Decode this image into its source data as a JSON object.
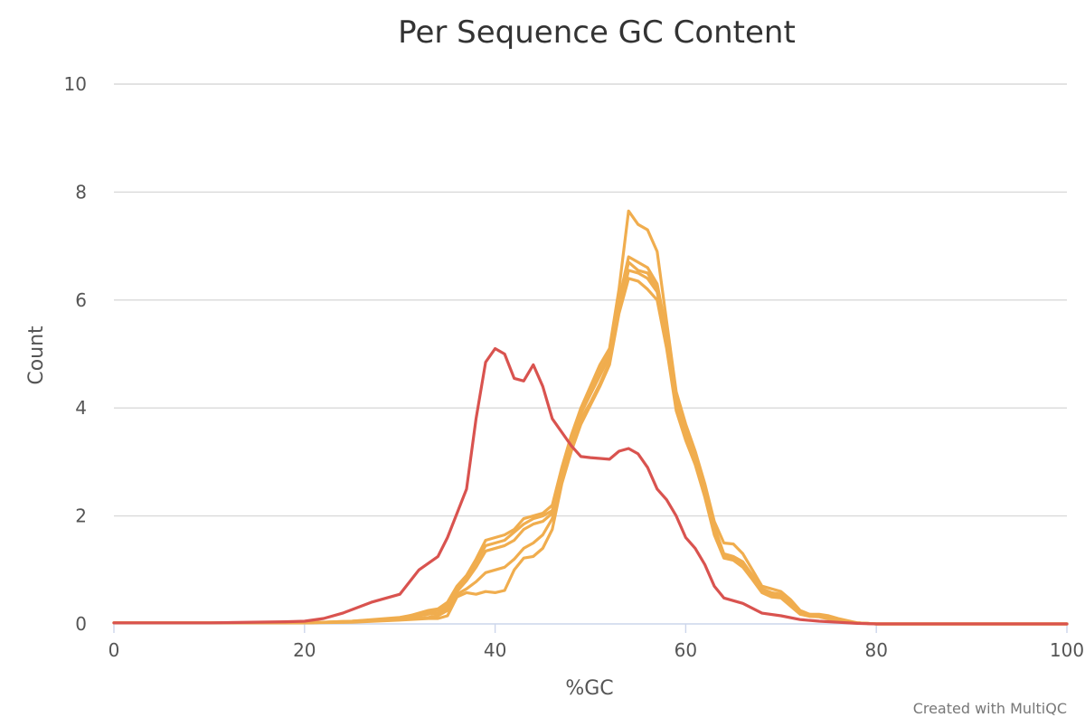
{
  "chart_data": {
    "type": "line",
    "title": "Per Sequence GC Content",
    "xlabel": "%GC",
    "ylabel": "Count",
    "xlim": [
      0,
      100
    ],
    "ylim": [
      0,
      10
    ],
    "x_ticks": [
      0,
      20,
      40,
      60,
      80,
      100
    ],
    "y_ticks": [
      0,
      2,
      4,
      6,
      8,
      10
    ],
    "grid": true,
    "legend": "none",
    "credit": "Created with MultiQC",
    "colors": {
      "fail": "#d9534f",
      "warn": "#f0ad4e"
    },
    "series": [
      {
        "status": "fail",
        "points": [
          [
            0,
            0.02
          ],
          [
            10,
            0.02
          ],
          [
            18,
            0.04
          ],
          [
            20,
            0.05
          ],
          [
            22,
            0.1
          ],
          [
            24,
            0.2
          ],
          [
            27,
            0.4
          ],
          [
            30,
            0.55
          ],
          [
            32,
            1.0
          ],
          [
            34,
            1.25
          ],
          [
            35,
            1.6
          ],
          [
            37,
            2.5
          ],
          [
            38,
            3.8
          ],
          [
            39,
            4.85
          ],
          [
            40,
            5.1
          ],
          [
            41,
            5.0
          ],
          [
            42,
            4.55
          ],
          [
            43,
            4.5
          ],
          [
            44,
            4.8
          ],
          [
            45,
            4.4
          ],
          [
            46,
            3.8
          ],
          [
            48,
            3.3
          ],
          [
            49,
            3.1
          ],
          [
            50,
            3.08
          ],
          [
            52,
            3.05
          ],
          [
            53,
            3.2
          ],
          [
            54,
            3.25
          ],
          [
            55,
            3.15
          ],
          [
            56,
            2.9
          ],
          [
            57,
            2.5
          ],
          [
            58,
            2.3
          ],
          [
            59,
            2.0
          ],
          [
            60,
            1.6
          ],
          [
            61,
            1.4
          ],
          [
            62,
            1.1
          ],
          [
            63,
            0.7
          ],
          [
            64,
            0.48
          ],
          [
            66,
            0.38
          ],
          [
            68,
            0.2
          ],
          [
            70,
            0.15
          ],
          [
            72,
            0.08
          ],
          [
            74,
            0.05
          ],
          [
            76,
            0.03
          ],
          [
            78,
            0.01
          ],
          [
            80,
            0
          ],
          [
            100,
            0
          ]
        ]
      },
      {
        "status": "warn",
        "points": [
          [
            0,
            0.02
          ],
          [
            20,
            0.02
          ],
          [
            25,
            0.05
          ],
          [
            30,
            0.1
          ],
          [
            33,
            0.25
          ],
          [
            34,
            0.28
          ],
          [
            35,
            0.4
          ],
          [
            36,
            0.7
          ],
          [
            37,
            0.9
          ],
          [
            38,
            1.2
          ],
          [
            39,
            1.55
          ],
          [
            40,
            1.6
          ],
          [
            41,
            1.65
          ],
          [
            42,
            1.75
          ],
          [
            43,
            1.95
          ],
          [
            44,
            2.0
          ],
          [
            45,
            2.05
          ],
          [
            46,
            2.2
          ],
          [
            47,
            2.9
          ],
          [
            48,
            3.5
          ],
          [
            49,
            4.0
          ],
          [
            50,
            4.4
          ],
          [
            51,
            4.8
          ],
          [
            52,
            5.1
          ],
          [
            53,
            6.2
          ],
          [
            54,
            7.65
          ],
          [
            55,
            7.4
          ],
          [
            56,
            7.3
          ],
          [
            57,
            6.9
          ],
          [
            58,
            5.6
          ],
          [
            59,
            4.3
          ],
          [
            60,
            3.7
          ],
          [
            61,
            3.2
          ],
          [
            62,
            2.6
          ],
          [
            63,
            1.9
          ],
          [
            64,
            1.5
          ],
          [
            65,
            1.48
          ],
          [
            66,
            1.3
          ],
          [
            67,
            1.0
          ],
          [
            68,
            0.7
          ],
          [
            69,
            0.65
          ],
          [
            70,
            0.6
          ],
          [
            71,
            0.45
          ],
          [
            72,
            0.25
          ],
          [
            73,
            0.18
          ],
          [
            74,
            0.18
          ],
          [
            75,
            0.15
          ],
          [
            76,
            0.1
          ],
          [
            78,
            0.02
          ],
          [
            80,
            0
          ],
          [
            100,
            0
          ]
        ]
      },
      {
        "status": "warn",
        "points": [
          [
            0,
            0.02
          ],
          [
            20,
            0.02
          ],
          [
            25,
            0.05
          ],
          [
            30,
            0.12
          ],
          [
            33,
            0.22
          ],
          [
            34,
            0.25
          ],
          [
            35,
            0.35
          ],
          [
            36,
            0.65
          ],
          [
            37,
            0.85
          ],
          [
            38,
            1.15
          ],
          [
            39,
            1.45
          ],
          [
            40,
            1.5
          ],
          [
            41,
            1.55
          ],
          [
            42,
            1.7
          ],
          [
            43,
            1.85
          ],
          [
            44,
            1.95
          ],
          [
            45,
            2.0
          ],
          [
            46,
            2.1
          ],
          [
            47,
            2.85
          ],
          [
            48,
            3.4
          ],
          [
            49,
            4.0
          ],
          [
            50,
            4.3
          ],
          [
            51,
            4.7
          ],
          [
            52,
            5.0
          ],
          [
            53,
            6.0
          ],
          [
            54,
            6.8
          ],
          [
            55,
            6.7
          ],
          [
            56,
            6.6
          ],
          [
            57,
            6.3
          ],
          [
            58,
            5.4
          ],
          [
            59,
            4.2
          ],
          [
            60,
            3.6
          ],
          [
            61,
            3.1
          ],
          [
            62,
            2.5
          ],
          [
            63,
            1.8
          ],
          [
            64,
            1.3
          ],
          [
            65,
            1.25
          ],
          [
            66,
            1.15
          ],
          [
            67,
            0.9
          ],
          [
            68,
            0.65
          ],
          [
            69,
            0.58
          ],
          [
            70,
            0.55
          ],
          [
            71,
            0.4
          ],
          [
            72,
            0.22
          ],
          [
            73,
            0.18
          ],
          [
            74,
            0.16
          ],
          [
            75,
            0.12
          ],
          [
            76,
            0.08
          ],
          [
            78,
            0.02
          ],
          [
            80,
            0
          ],
          [
            100,
            0
          ]
        ]
      },
      {
        "status": "warn",
        "points": [
          [
            0,
            0.02
          ],
          [
            20,
            0.02
          ],
          [
            25,
            0.04
          ],
          [
            30,
            0.1
          ],
          [
            33,
            0.18
          ],
          [
            34,
            0.2
          ],
          [
            35,
            0.3
          ],
          [
            36,
            0.6
          ],
          [
            37,
            0.8
          ],
          [
            38,
            1.05
          ],
          [
            39,
            1.35
          ],
          [
            40,
            1.4
          ],
          [
            41,
            1.45
          ],
          [
            42,
            1.55
          ],
          [
            43,
            1.75
          ],
          [
            44,
            1.85
          ],
          [
            45,
            1.9
          ],
          [
            46,
            2.05
          ],
          [
            47,
            2.8
          ],
          [
            48,
            3.4
          ],
          [
            49,
            3.9
          ],
          [
            50,
            4.25
          ],
          [
            51,
            4.6
          ],
          [
            52,
            4.95
          ],
          [
            53,
            5.9
          ],
          [
            54,
            6.7
          ],
          [
            55,
            6.55
          ],
          [
            56,
            6.5
          ],
          [
            57,
            6.2
          ],
          [
            58,
            5.3
          ],
          [
            59,
            4.1
          ],
          [
            60,
            3.5
          ],
          [
            61,
            3.0
          ],
          [
            62,
            2.45
          ],
          [
            63,
            1.75
          ],
          [
            64,
            1.28
          ],
          [
            65,
            1.22
          ],
          [
            66,
            1.1
          ],
          [
            67,
            0.88
          ],
          [
            68,
            0.62
          ],
          [
            69,
            0.55
          ],
          [
            70,
            0.52
          ],
          [
            71,
            0.38
          ],
          [
            72,
            0.2
          ],
          [
            73,
            0.16
          ],
          [
            74,
            0.15
          ],
          [
            75,
            0.1
          ],
          [
            76,
            0.07
          ],
          [
            78,
            0.02
          ],
          [
            80,
            0
          ],
          [
            100,
            0
          ]
        ]
      },
      {
        "status": "warn",
        "points": [
          [
            0,
            0.02
          ],
          [
            20,
            0.02
          ],
          [
            25,
            0.04
          ],
          [
            30,
            0.08
          ],
          [
            33,
            0.12
          ],
          [
            34,
            0.15
          ],
          [
            35,
            0.25
          ],
          [
            36,
            0.55
          ],
          [
            37,
            0.65
          ],
          [
            38,
            0.78
          ],
          [
            39,
            0.95
          ],
          [
            40,
            1.0
          ],
          [
            41,
            1.05
          ],
          [
            42,
            1.2
          ],
          [
            43,
            1.4
          ],
          [
            44,
            1.5
          ],
          [
            45,
            1.65
          ],
          [
            46,
            1.95
          ],
          [
            47,
            2.7
          ],
          [
            48,
            3.3
          ],
          [
            49,
            3.8
          ],
          [
            50,
            4.1
          ],
          [
            51,
            4.45
          ],
          [
            52,
            4.85
          ],
          [
            53,
            5.8
          ],
          [
            54,
            6.55
          ],
          [
            55,
            6.5
          ],
          [
            56,
            6.4
          ],
          [
            57,
            6.15
          ],
          [
            58,
            5.2
          ],
          [
            59,
            4.0
          ],
          [
            60,
            3.45
          ],
          [
            61,
            3.0
          ],
          [
            62,
            2.4
          ],
          [
            63,
            1.7
          ],
          [
            64,
            1.25
          ],
          [
            65,
            1.2
          ],
          [
            66,
            1.08
          ],
          [
            67,
            0.85
          ],
          [
            68,
            0.6
          ],
          [
            69,
            0.52
          ],
          [
            70,
            0.5
          ],
          [
            71,
            0.35
          ],
          [
            72,
            0.2
          ],
          [
            73,
            0.15
          ],
          [
            74,
            0.14
          ],
          [
            75,
            0.1
          ],
          [
            76,
            0.06
          ],
          [
            78,
            0.02
          ],
          [
            80,
            0
          ],
          [
            100,
            0
          ]
        ]
      },
      {
        "status": "warn",
        "points": [
          [
            0,
            0.02
          ],
          [
            20,
            0.02
          ],
          [
            25,
            0.03
          ],
          [
            30,
            0.07
          ],
          [
            33,
            0.1
          ],
          [
            34,
            0.1
          ],
          [
            35,
            0.15
          ],
          [
            36,
            0.5
          ],
          [
            37,
            0.58
          ],
          [
            38,
            0.55
          ],
          [
            39,
            0.6
          ],
          [
            40,
            0.58
          ],
          [
            41,
            0.62
          ],
          [
            42,
            1.0
          ],
          [
            43,
            1.22
          ],
          [
            44,
            1.25
          ],
          [
            45,
            1.4
          ],
          [
            46,
            1.75
          ],
          [
            47,
            2.6
          ],
          [
            48,
            3.2
          ],
          [
            49,
            3.7
          ],
          [
            50,
            4.05
          ],
          [
            51,
            4.4
          ],
          [
            52,
            4.8
          ],
          [
            53,
            5.75
          ],
          [
            54,
            6.4
          ],
          [
            55,
            6.35
          ],
          [
            56,
            6.2
          ],
          [
            57,
            6.0
          ],
          [
            58,
            5.1
          ],
          [
            59,
            3.95
          ],
          [
            60,
            3.4
          ],
          [
            61,
            2.95
          ],
          [
            62,
            2.35
          ],
          [
            63,
            1.65
          ],
          [
            64,
            1.22
          ],
          [
            65,
            1.18
          ],
          [
            66,
            1.05
          ],
          [
            67,
            0.82
          ],
          [
            68,
            0.58
          ],
          [
            69,
            0.5
          ],
          [
            70,
            0.48
          ],
          [
            71,
            0.33
          ],
          [
            72,
            0.18
          ],
          [
            73,
            0.14
          ],
          [
            74,
            0.13
          ],
          [
            75,
            0.09
          ],
          [
            76,
            0.05
          ],
          [
            78,
            0.02
          ],
          [
            80,
            0
          ],
          [
            100,
            0
          ]
        ]
      }
    ]
  }
}
